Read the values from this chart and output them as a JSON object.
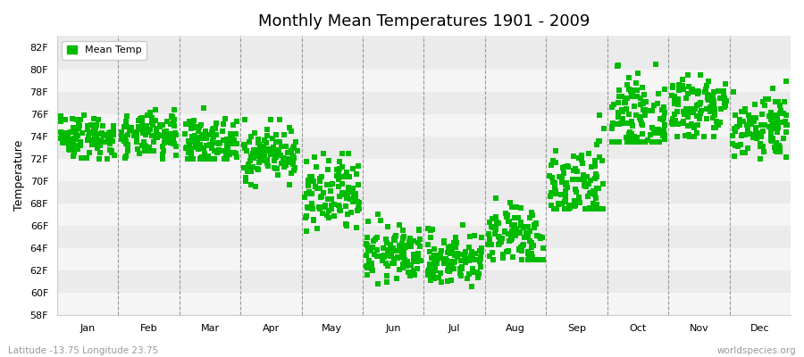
{
  "title": "Monthly Mean Temperatures 1901 - 2009",
  "ylabel": "Temperature",
  "xlabel_labels": [
    "Jan",
    "Feb",
    "Mar",
    "Apr",
    "May",
    "Jun",
    "Jul",
    "Aug",
    "Sep",
    "Oct",
    "Nov",
    "Dec"
  ],
  "footer_left": "Latitude -13.75 Longitude 23.75",
  "footer_right": "worldspecies.org",
  "legend_label": "Mean Temp",
  "marker_color": "#00bb00",
  "marker": "s",
  "marker_size": 4,
  "ylim": [
    58,
    83
  ],
  "yticks": [
    58,
    60,
    62,
    64,
    66,
    68,
    70,
    72,
    74,
    76,
    78,
    80,
    82
  ],
  "ytick_labels": [
    "58F",
    "60F",
    "62F",
    "64F",
    "66F",
    "68F",
    "70F",
    "72F",
    "74F",
    "76F",
    "78F",
    "80F",
    "82F"
  ],
  "background_color": "#ffffff",
  "plot_bg_color": "#ebebeb",
  "alt_band_color": "#f5f5f5",
  "dashed_line_color": "#999999",
  "n_years": 109,
  "monthly_means": [
    74.0,
    74.0,
    73.5,
    72.5,
    68.5,
    63.5,
    63.0,
    65.0,
    69.5,
    75.5,
    76.5,
    75.0
  ],
  "monthly_stds": [
    1.0,
    1.0,
    1.0,
    1.2,
    1.8,
    1.2,
    1.2,
    1.5,
    2.0,
    1.8,
    1.8,
    1.5
  ],
  "monthly_mins": [
    72.0,
    71.5,
    72.0,
    69.5,
    63.5,
    59.5,
    59.5,
    63.0,
    67.5,
    73.5,
    74.0,
    72.0
  ],
  "monthly_maxs": [
    77.0,
    77.5,
    78.0,
    75.5,
    72.5,
    67.5,
    66.5,
    70.5,
    79.0,
    81.5,
    79.5,
    79.0
  ]
}
